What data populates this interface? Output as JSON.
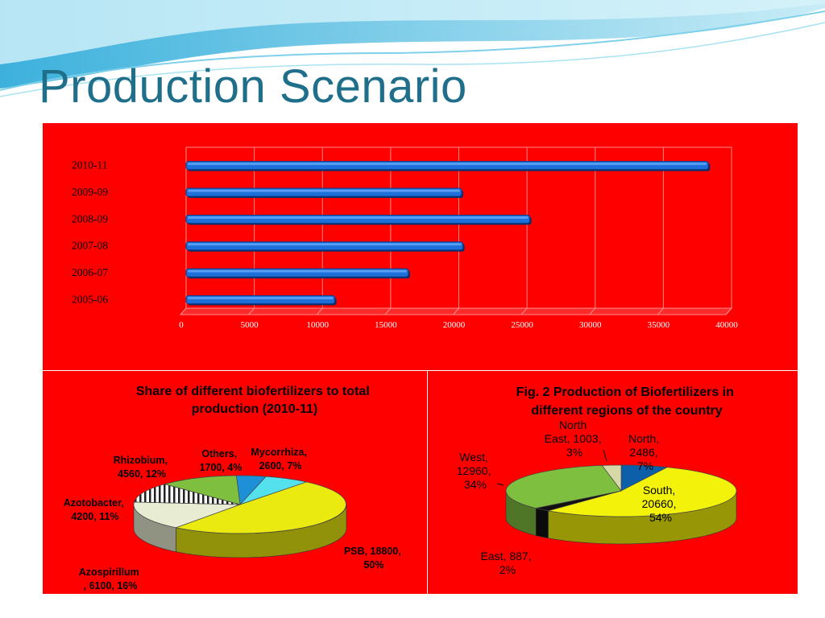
{
  "slide": {
    "title": "Production Scenario"
  },
  "chart_data": [
    {
      "type": "bar",
      "orientation": "horizontal",
      "categories": [
        "2010-11",
        "2009-09",
        "2008-09",
        "2007-08",
        "2006-07",
        "2005-06"
      ],
      "values": [
        38300,
        20200,
        25200,
        20300,
        16300,
        10900
      ],
      "x_ticks": [
        "0",
        "5000",
        "10000",
        "15000",
        "20000",
        "25000",
        "30000",
        "35000",
        "40000"
      ],
      "xlim": [
        0,
        40000
      ],
      "colors": {
        "bar": "#1e6fd9",
        "background": "#ff0000"
      }
    },
    {
      "type": "pie",
      "title": "Share of different biofertilizers to total production (2010-11)",
      "slices": [
        {
          "name": "PSB",
          "value": 18800,
          "pct": 50,
          "label": "PSB, 18800, 50%",
          "color": "#eaea10"
        },
        {
          "name": "Azospirillum",
          "value": 6100,
          "pct": 16,
          "label": "Azospirillum , 6100, 16%",
          "color": "#e8ecd2"
        },
        {
          "name": "Azotobacter",
          "value": 4200,
          "pct": 11,
          "label": "Azotobacter, 4200, 11%",
          "color": "#ffffff"
        },
        {
          "name": "Rhizobium",
          "value": 4560,
          "pct": 12,
          "label": "Rhizobium, 4560, 12%",
          "color": "#7fbf3f"
        },
        {
          "name": "Others",
          "value": 1700,
          "pct": 4,
          "label": "Others, 1700, 4%",
          "color": "#1e90d8"
        },
        {
          "name": "Mycorrhiza",
          "value": 2600,
          "pct": 7,
          "label": "Mycorrhiza, 2600, 7%",
          "color": "#55e0ee"
        }
      ]
    },
    {
      "type": "pie",
      "title": "Fig. 2 Production of Biofertilizers in different regions of the country",
      "slices": [
        {
          "name": "North",
          "value": 2486,
          "pct": 7,
          "label": "North, 2486, 7%",
          "color": "#0c5fa8"
        },
        {
          "name": "South",
          "value": 20660,
          "pct": 54,
          "label": "South, 20660, 54%",
          "color": "#f2f20a"
        },
        {
          "name": "East",
          "value": 887,
          "pct": 2,
          "label": "East, 887, 2%",
          "color": "#111111"
        },
        {
          "name": "West",
          "value": 12960,
          "pct": 34,
          "label": "West, 12960, 34%",
          "color": "#7fbf3f"
        },
        {
          "name": "North East",
          "value": 1003,
          "pct": 3,
          "label": "North East, 1003, 3%",
          "color": "#d6d8a8"
        }
      ]
    }
  ],
  "labels": {
    "left": {
      "title_lines": [
        "Share of different biofertilizers to total",
        "production (2010-11)"
      ],
      "psb": [
        "PSB, 18800,",
        "50%"
      ],
      "azospirillum": [
        "Azospirillum",
        ", 6100, 16%"
      ],
      "azotobacter": [
        "Azotobacter,",
        "4200, 11%"
      ],
      "rhizobium": [
        "Rhizobium,",
        "4560, 12%"
      ],
      "others": [
        "Others,",
        "1700, 4%"
      ],
      "mycorrhiza": [
        "Mycorrhiza,",
        "2600, 7%"
      ]
    },
    "right": {
      "title_lines": [
        "Fig. 2 Production of Biofertilizers in",
        "different regions of the country"
      ],
      "north": [
        "North,",
        "2486,",
        "7%"
      ],
      "south": [
        "South,",
        "20660,",
        "54%"
      ],
      "east": [
        "East, 887,",
        "2%"
      ],
      "west": [
        "West,",
        "12960,",
        "34%"
      ],
      "north_east": [
        "North",
        "East, 1003,",
        "3%"
      ]
    }
  }
}
